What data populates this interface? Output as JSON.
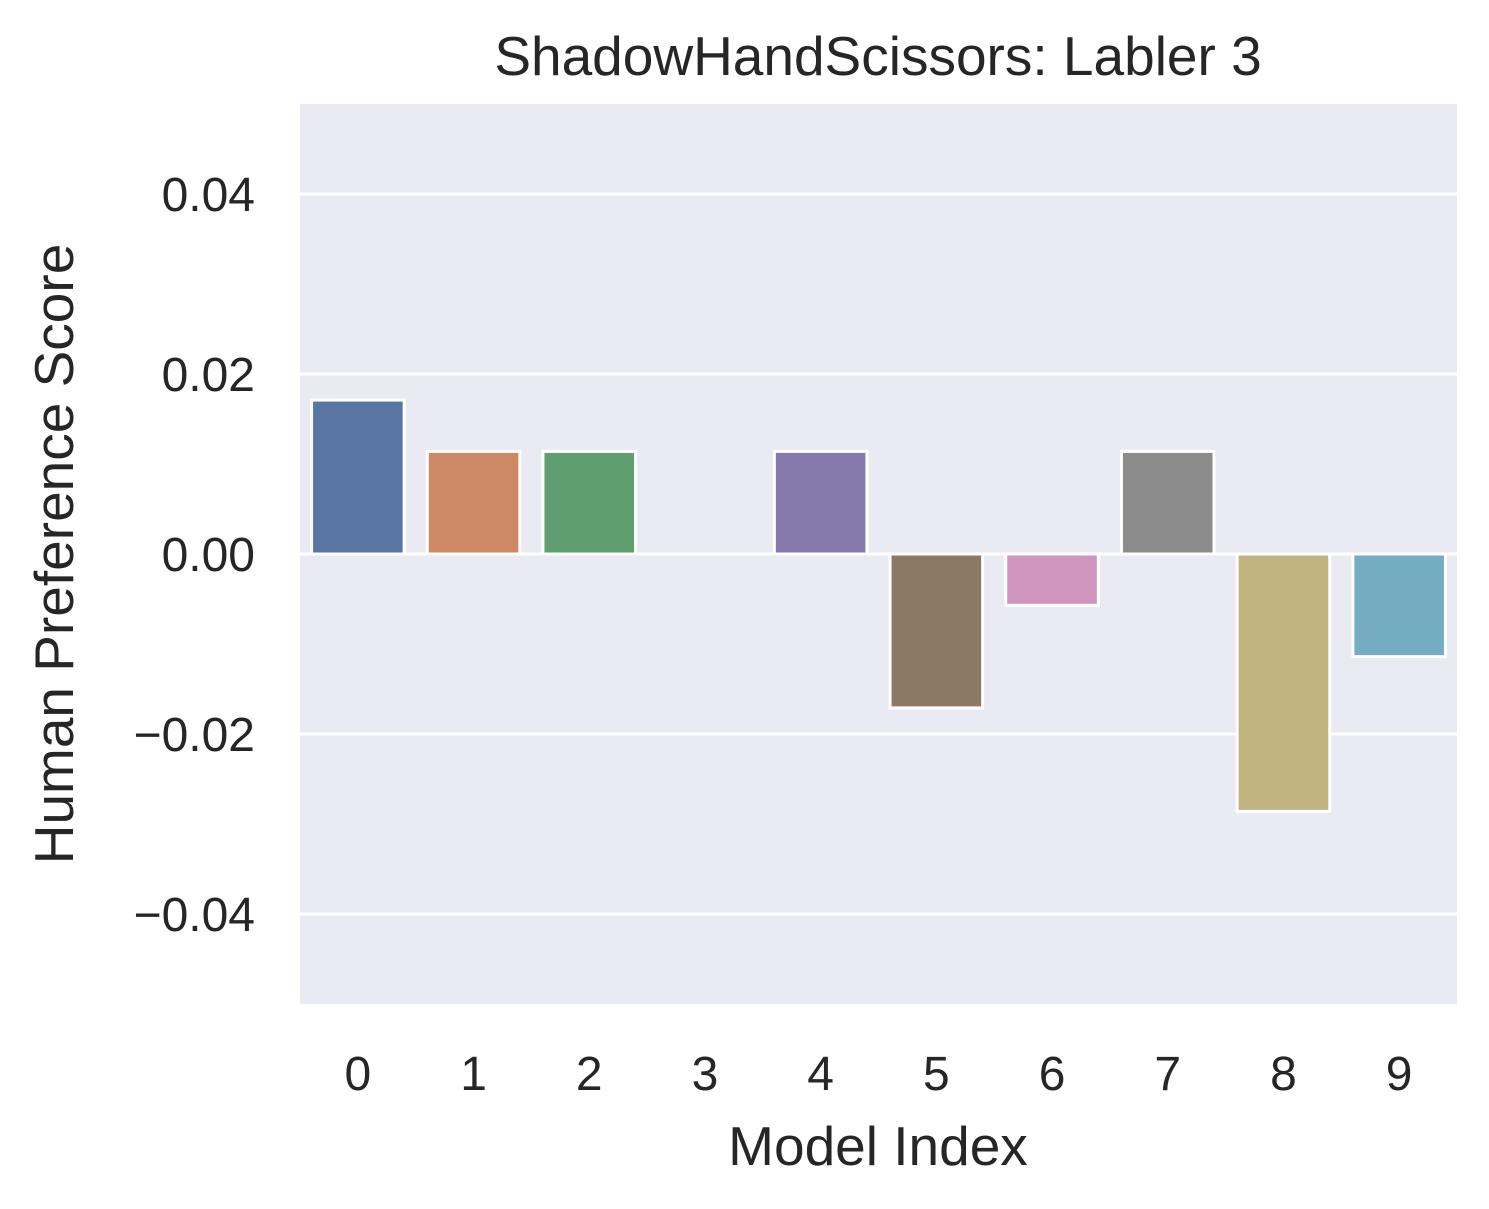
{
  "chart_data": {
    "type": "bar",
    "title": "ShadowHandScissors: Labler 3",
    "xlabel": "Model Index",
    "ylabel": "Human Preference Score",
    "categories": [
      "0",
      "1",
      "2",
      "3",
      "4",
      "5",
      "6",
      "7",
      "8",
      "9"
    ],
    "values": [
      0.0171,
      0.0114,
      0.0114,
      0.0,
      0.0114,
      -0.0171,
      -0.0057,
      0.0114,
      -0.0286,
      -0.0114
    ],
    "ylim": [
      -0.05,
      0.05
    ],
    "yticks": [
      0.04,
      0.02,
      0.0,
      -0.02,
      -0.04
    ],
    "ytick_labels": [
      "0.04",
      "0.02",
      "0.00",
      "−0.02",
      "−0.04"
    ],
    "grid": true,
    "background_color": "#EAEAF2",
    "grid_color": "#FFFFFF",
    "bar_edge_color": "#FFFFFF",
    "text_color": "#262626",
    "colors": [
      "#5975A4",
      "#CC8963",
      "#5F9E6E",
      "#B55D60",
      "#857AAB",
      "#8D7866",
      "#D095BF",
      "#8C8C8C",
      "#C1B37F",
      "#74ADC1"
    ]
  }
}
